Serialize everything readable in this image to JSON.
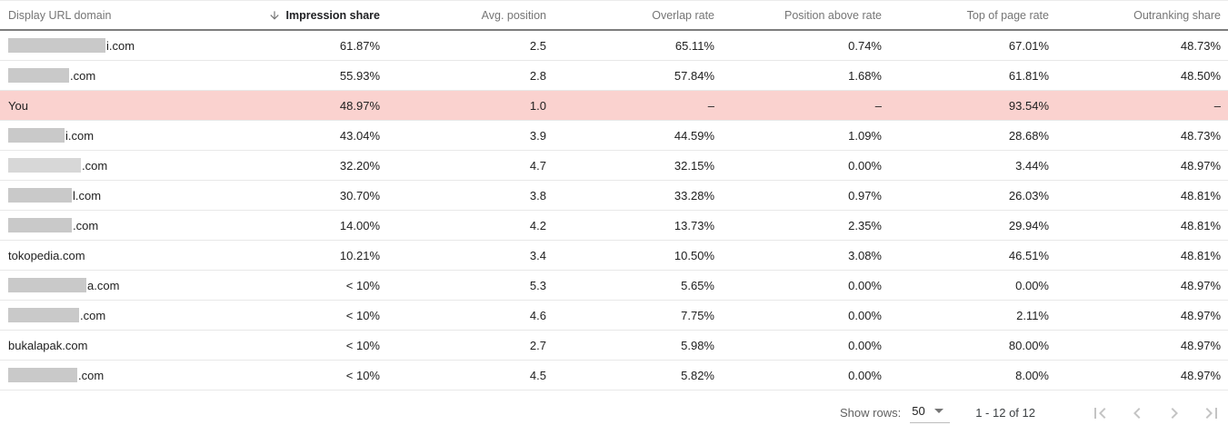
{
  "table": {
    "columns": {
      "domain": "Display URL domain",
      "impression_share": "Impression share",
      "avg_position": "Avg. position",
      "overlap_rate": "Overlap rate",
      "position_above_rate": "Position above rate",
      "top_of_page_rate": "Top of page rate",
      "outranking_share": "Outranking share"
    },
    "sorted_column": "Impression share",
    "sort_direction": "descending",
    "rows": [
      {
        "domain_text": "i.com",
        "redact_width": 107,
        "redact_shade": "normal",
        "highlight": false,
        "values": [
          "61.87%",
          "2.5",
          "65.11%",
          "0.74%",
          "67.01%",
          "48.73%"
        ]
      },
      {
        "domain_text": ".com",
        "redact_width": 67,
        "redact_shade": "normal",
        "highlight": false,
        "values": [
          "55.93%",
          "2.8",
          "57.84%",
          "1.68%",
          "61.81%",
          "48.50%"
        ]
      },
      {
        "domain_text": "You",
        "redact_width": 0,
        "redact_shade": "normal",
        "highlight": true,
        "values": [
          "48.97%",
          "1.0",
          "–",
          "–",
          "93.54%",
          "–"
        ]
      },
      {
        "domain_text": "i.com",
        "redact_width": 62,
        "redact_shade": "normal",
        "highlight": false,
        "values": [
          "43.04%",
          "3.9",
          "44.59%",
          "1.09%",
          "28.68%",
          "48.73%"
        ]
      },
      {
        "domain_text": ".com",
        "redact_width": 80,
        "redact_shade": "light",
        "highlight": false,
        "values": [
          "32.20%",
          "4.7",
          "32.15%",
          "0.00%",
          "3.44%",
          "48.97%"
        ]
      },
      {
        "domain_text": "l.com",
        "redact_width": 70,
        "redact_shade": "normal",
        "highlight": false,
        "values": [
          "30.70%",
          "3.8",
          "33.28%",
          "0.97%",
          "26.03%",
          "48.81%"
        ]
      },
      {
        "domain_text": ".com",
        "redact_width": 70,
        "redact_shade": "normal",
        "highlight": false,
        "values": [
          "14.00%",
          "4.2",
          "13.73%",
          "2.35%",
          "29.94%",
          "48.81%"
        ]
      },
      {
        "domain_text": "tokopedia.com",
        "redact_width": 0,
        "redact_shade": "normal",
        "highlight": false,
        "values": [
          "10.21%",
          "3.4",
          "10.50%",
          "3.08%",
          "46.51%",
          "48.81%"
        ]
      },
      {
        "domain_text": "a.com",
        "redact_width": 86,
        "redact_shade": "normal",
        "highlight": false,
        "values": [
          "< 10%",
          "5.3",
          "5.65%",
          "0.00%",
          "0.00%",
          "48.97%"
        ]
      },
      {
        "domain_text": ".com",
        "redact_width": 78,
        "redact_shade": "normal",
        "highlight": false,
        "values": [
          "< 10%",
          "4.6",
          "7.75%",
          "0.00%",
          "2.11%",
          "48.97%"
        ]
      },
      {
        "domain_text": "bukalapak.com",
        "redact_width": 0,
        "redact_shade": "normal",
        "highlight": false,
        "values": [
          "< 10%",
          "2.7",
          "5.98%",
          "0.00%",
          "80.00%",
          "48.97%"
        ]
      },
      {
        "domain_text": ".com",
        "redact_width": 76,
        "redact_shade": "normal",
        "highlight": false,
        "values": [
          "< 10%",
          "4.5",
          "5.82%",
          "0.00%",
          "8.00%",
          "48.97%"
        ]
      }
    ]
  },
  "footer": {
    "show_rows_label": "Show rows:",
    "show_rows_value": "50",
    "range": "1 - 12 of 12"
  },
  "colors": {
    "highlight_row": "#fad2cf",
    "redaction": "#c9c9c9",
    "redaction_light": "#d7d7d7",
    "header_text": "#757575",
    "sorted_header_text": "#202124",
    "body_text": "#212121",
    "divider": "#e8e8e8",
    "header_border": "#7d7d7d",
    "pagination_icon": "#c4c4c4"
  }
}
